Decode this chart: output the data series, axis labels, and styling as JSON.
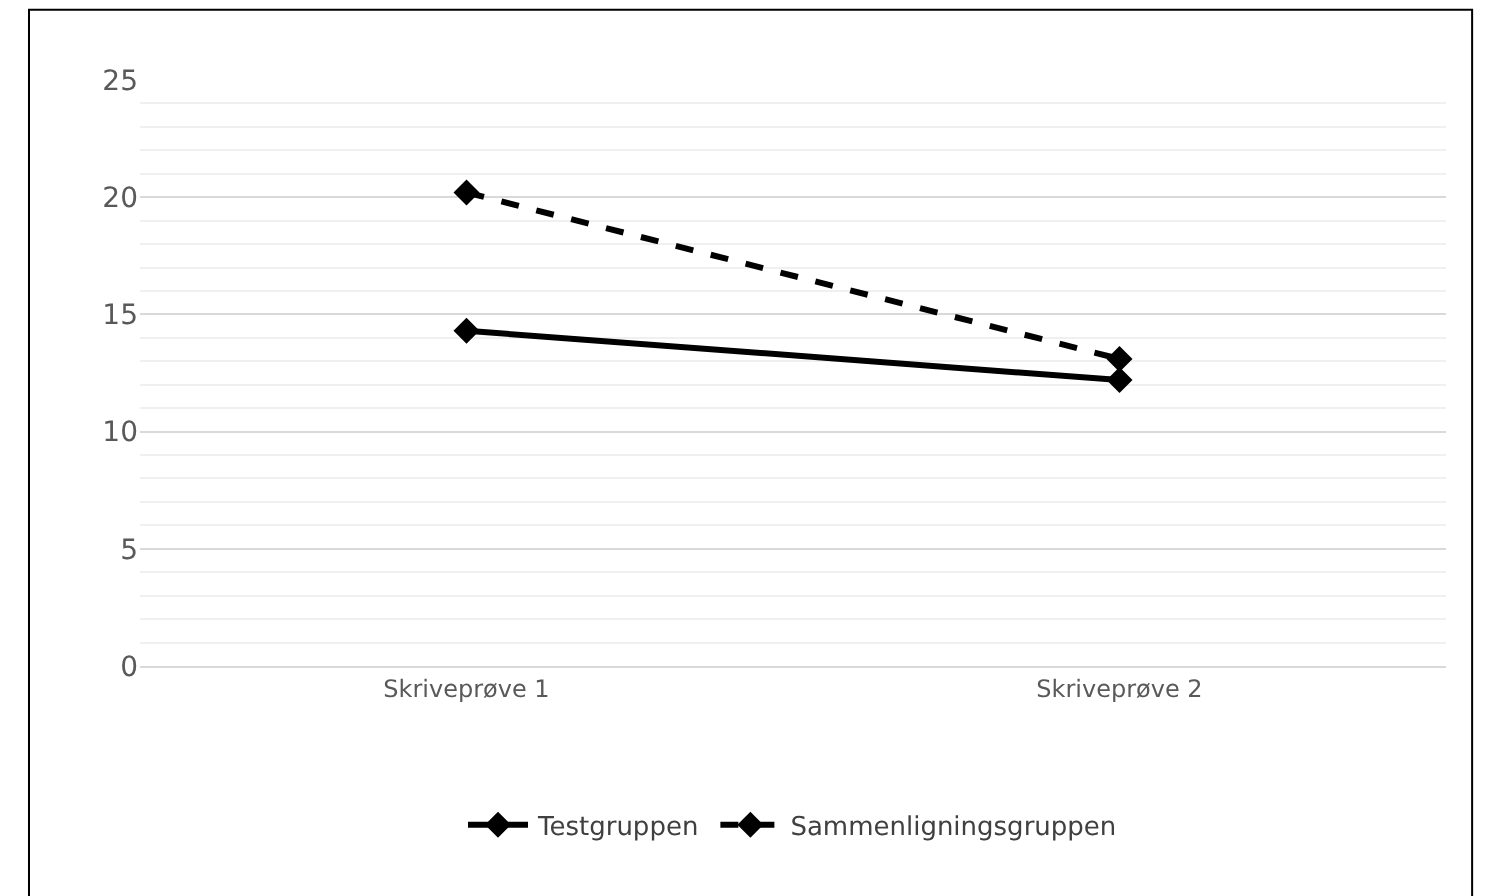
{
  "chart_data": {
    "type": "line",
    "categories": [
      "Skriveprøve 1",
      "Skriveprøve 2"
    ],
    "series": [
      {
        "name": "Testgruppen",
        "color": "#000000",
        "values": [
          14.3,
          12.2
        ],
        "line_style": "solid"
      },
      {
        "name": "Sammenligningsgruppen",
        "color": "#000000",
        "values": [
          20.2,
          13.1
        ],
        "line_style": "dashed"
      }
    ],
    "ylim": [
      0,
      25
    ],
    "yticks": [
      0,
      5,
      10,
      15,
      20,
      25
    ],
    "grid": "y",
    "legend": "bottom",
    "marker": "diamond"
  }
}
